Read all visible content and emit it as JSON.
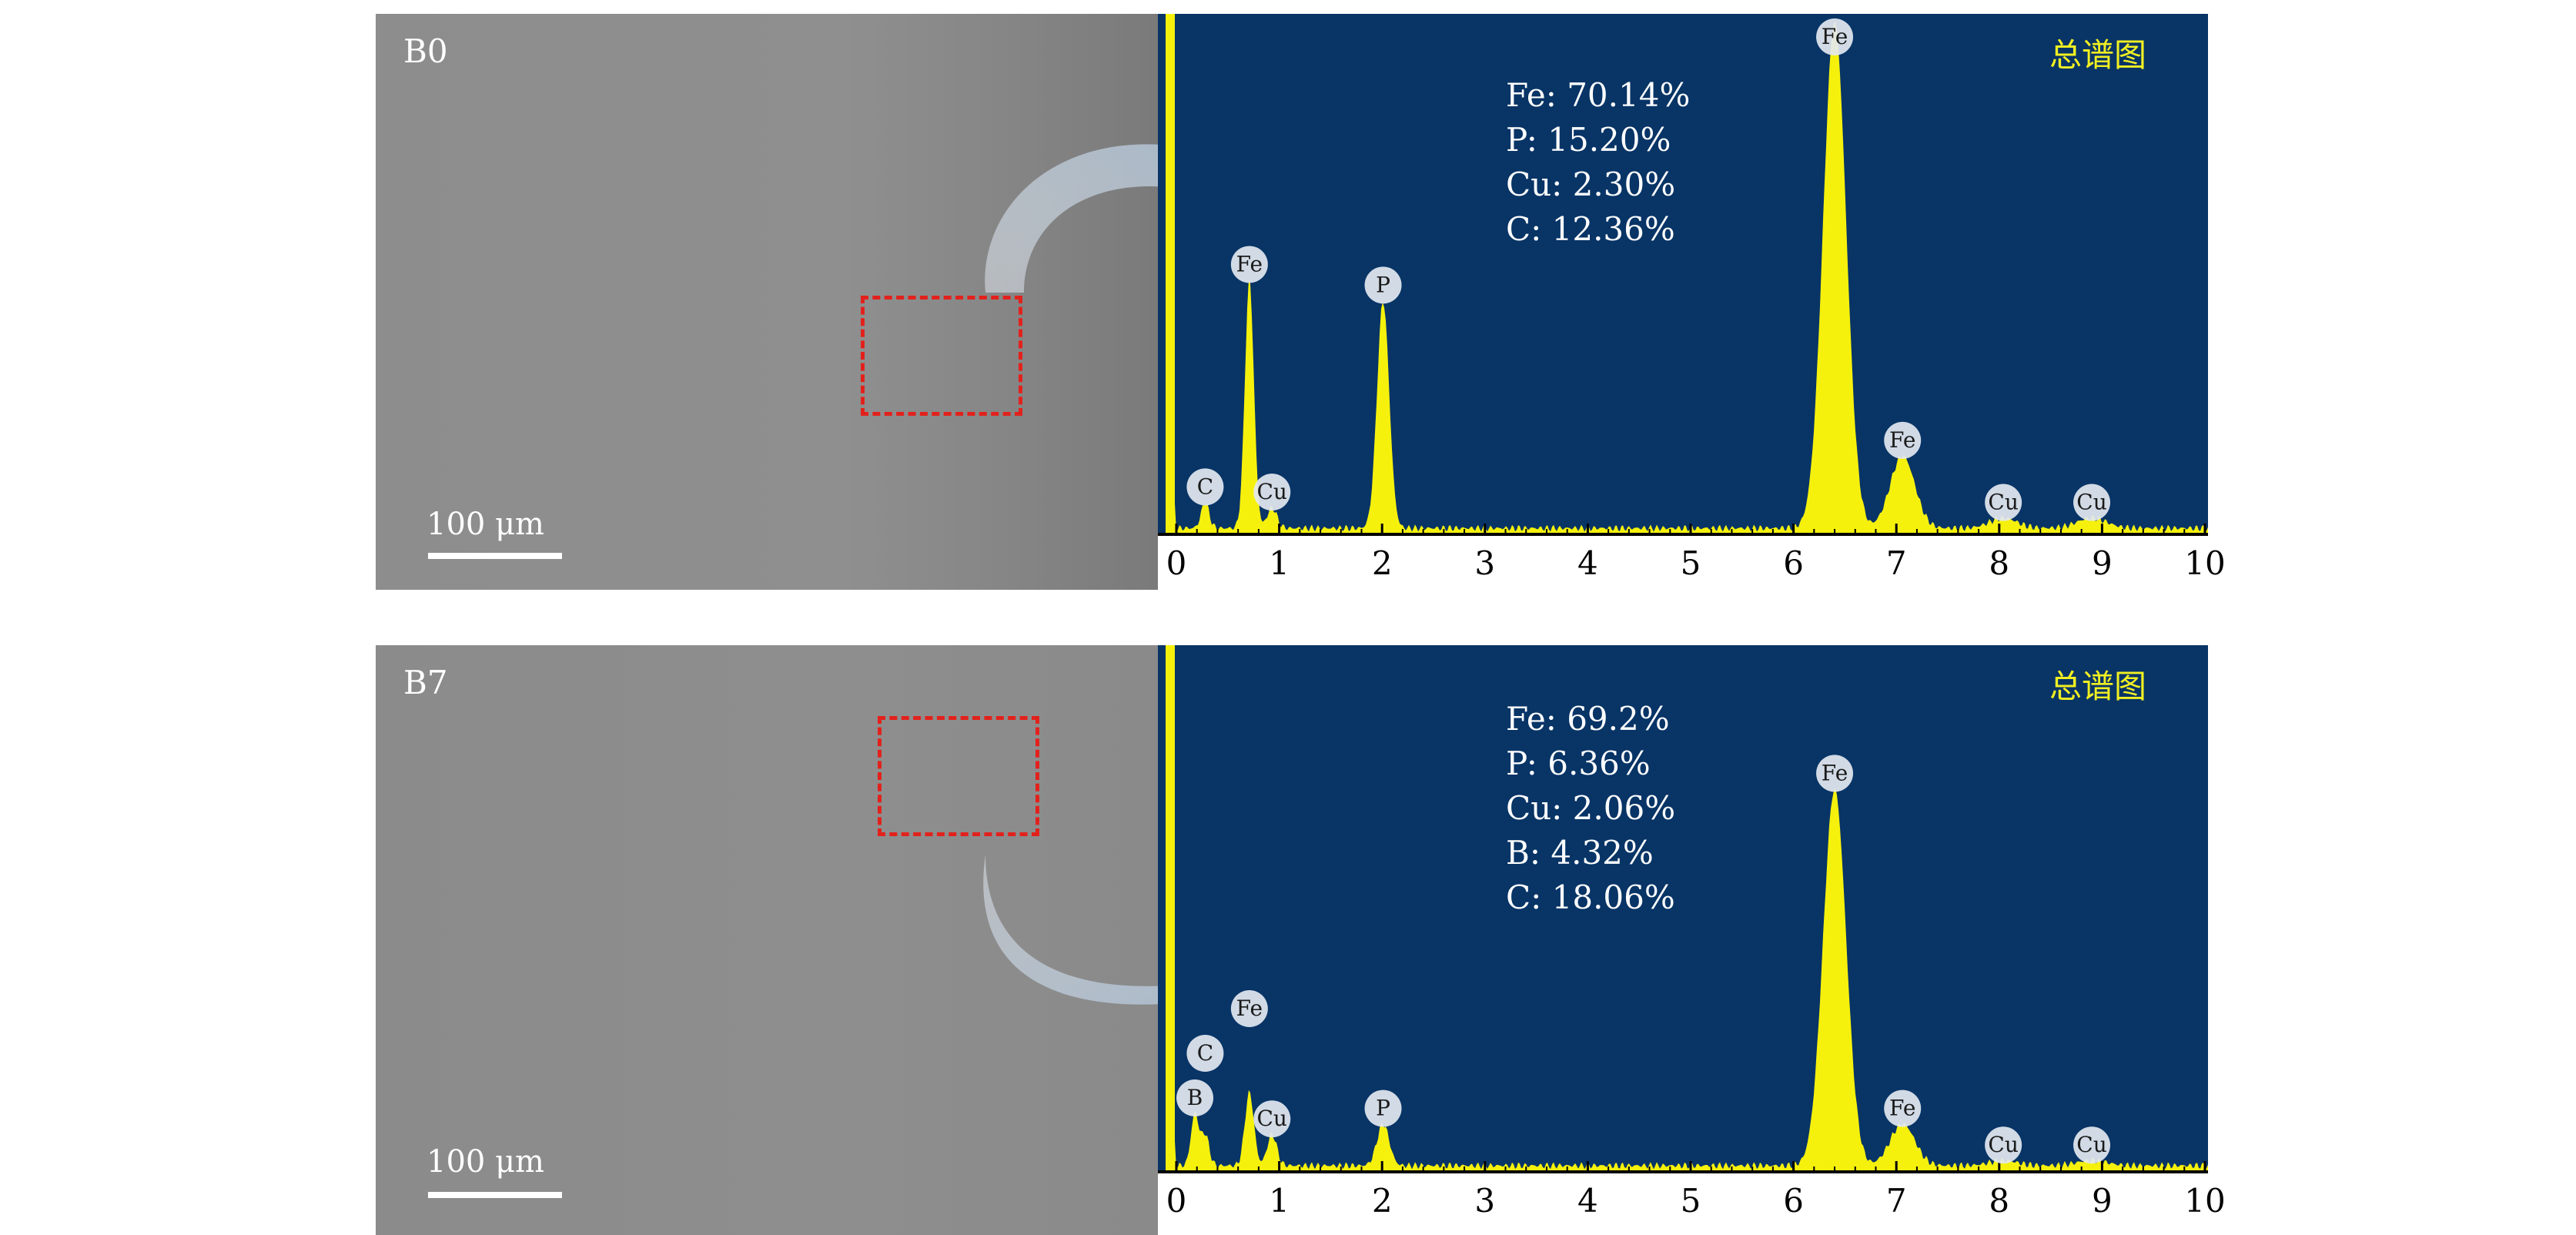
{
  "colors": {
    "spectrum_bg": "#083466",
    "spectrum_fill": "#f5f10c",
    "annotation_text": "#ffffff",
    "legend_text": "#f1ef22",
    "roi_border": "#e3211c",
    "sem_gray": "#8e8e8e"
  },
  "panels": [
    {
      "sample_label": "B0",
      "scale_bar": "100 μm",
      "spectrum_title": "总谱图",
      "composition": [
        "Fe: 70.14%",
        "P: 15.20%",
        "Cu: 2.30%",
        "C: 12.36%"
      ]
    },
    {
      "sample_label": "B7",
      "scale_bar": "100 μm",
      "spectrum_title": "总谱图",
      "composition": [
        "Fe: 69.2%",
        "P: 6.36%",
        "Cu: 2.06%",
        "B: 4.32%",
        "C: 18.06%"
      ]
    }
  ],
  "chart_data": [
    {
      "type": "area",
      "title": "总谱图",
      "xlabel": "",
      "ylabel": "",
      "xlim": [
        0,
        10
      ],
      "x_ticks": [
        "0",
        "1",
        "2",
        "3",
        "4",
        "5",
        "6",
        "7",
        "8",
        "9",
        "10"
      ],
      "grid": false,
      "peaks": [
        {
          "element": "C",
          "energy": 0.28,
          "relative_height": 0.05
        },
        {
          "element": "Fe",
          "energy": 0.71,
          "relative_height": 0.48
        },
        {
          "element": "Cu",
          "energy": 0.93,
          "relative_height": 0.04
        },
        {
          "element": "P",
          "energy": 2.01,
          "relative_height": 0.44
        },
        {
          "element": "Fe",
          "energy": 6.4,
          "relative_height": 0.98
        },
        {
          "element": "Fe",
          "energy": 7.06,
          "relative_height": 0.14
        },
        {
          "element": "Cu",
          "energy": 8.04,
          "relative_height": 0.02
        },
        {
          "element": "Cu",
          "energy": 8.9,
          "relative_height": 0.02
        }
      ]
    },
    {
      "type": "area",
      "title": "总谱图",
      "xlabel": "",
      "ylabel": "",
      "xlim": [
        0,
        10
      ],
      "x_ticks": [
        "0",
        "1",
        "2",
        "3",
        "4",
        "5",
        "6",
        "7",
        "8",
        "9",
        "10"
      ],
      "grid": false,
      "peaks": [
        {
          "element": "B",
          "energy": 0.18,
          "relative_height": 0.1
        },
        {
          "element": "C",
          "energy": 0.28,
          "relative_height": 0.06
        },
        {
          "element": "Fe",
          "energy": 0.71,
          "relative_height": 0.14
        },
        {
          "element": "Cu",
          "energy": 0.93,
          "relative_height": 0.06
        },
        {
          "element": "P",
          "energy": 2.01,
          "relative_height": 0.08
        },
        {
          "element": "Fe",
          "energy": 6.4,
          "relative_height": 0.72
        },
        {
          "element": "Fe",
          "energy": 7.06,
          "relative_height": 0.08
        },
        {
          "element": "Cu",
          "energy": 8.04,
          "relative_height": 0.01
        },
        {
          "element": "Cu",
          "energy": 8.9,
          "relative_height": 0.01
        }
      ]
    }
  ]
}
